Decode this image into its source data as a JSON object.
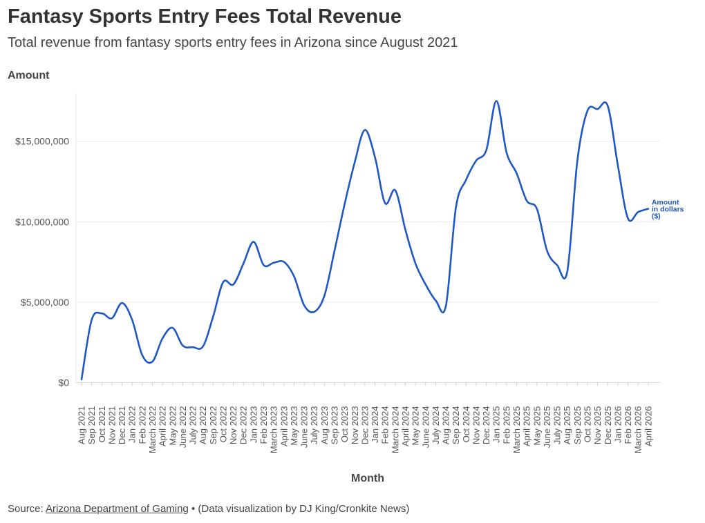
{
  "chart_data": {
    "type": "line",
    "title": "Fantasy Sports Entry Fees Total Revenue",
    "subtitle": "Total revenue from fantasy sports entry fees in Arizona since August 2021",
    "ylabel": "Amount",
    "xlabel": "Month",
    "ylim": [
      0,
      18000000
    ],
    "yticks": [
      0,
      5000000,
      10000000,
      15000000
    ],
    "ytick_labels": [
      "$0",
      "$5,000,000",
      "$10,000,000",
      "$15,000,000"
    ],
    "grid": true,
    "color": "#1f57c3",
    "categories": [
      "Aug 2021",
      "Sep 2021",
      "Oct 2021",
      "Nov 2021",
      "Dec 2021",
      "Jan 2022",
      "Feb 2022",
      "March 2022",
      "April 2022",
      "May 2022",
      "June 2022",
      "July 2022",
      "Aug 2022",
      "Sep 2022",
      "Oct 2022",
      "Nov 2022",
      "Dec 2022",
      "Jan 2023",
      "Feb 2023",
      "March 2023",
      "April 2023",
      "May 2023",
      "June 2023",
      "July 2023",
      "Aug 2023",
      "Sep 2023",
      "Oct 2023",
      "Nov 2023",
      "Dec 2023",
      "Jan 2024",
      "Feb 2024",
      "March 2024",
      "April 2024",
      "May 2024",
      "June 2024",
      "July 2024",
      "Aug 2024",
      "Sep 2024",
      "Oct 2024",
      "Nov 2024",
      "Dec 2024",
      "Jan 2025",
      "Feb 2025",
      "March 2025",
      "April 2025",
      "May 2025",
      "June 2025",
      "July 2025",
      "Aug 2025",
      "Sep 2025",
      "Oct 2025",
      "Nov 2025",
      "Dec 2025",
      "Jan 2026",
      "Feb 2026",
      "March 2026",
      "April 2026"
    ],
    "series": [
      {
        "name": "Amount in dollars ($)",
        "values": [
          200000,
          3900000,
          4300000,
          4000000,
          4950000,
          3900000,
          1700000,
          1300000,
          2750000,
          3400000,
          2300000,
          2200000,
          2250000,
          4100000,
          6250000,
          6100000,
          7400000,
          8750000,
          7300000,
          7450000,
          7500000,
          6600000,
          4800000,
          4400000,
          5400000,
          8200000,
          11100000,
          13700000,
          15700000,
          14000000,
          11150000,
          11950000,
          9500000,
          7400000,
          6100000,
          5100000,
          4750000,
          10900000,
          12600000,
          13800000,
          14450000,
          17500000,
          14300000,
          13000000,
          11300000,
          10800000,
          8200000,
          7300000,
          6900000,
          13800000,
          16900000,
          17000000,
          17200000,
          13500000,
          10200000,
          10600000,
          10800000
        ]
      }
    ],
    "end_label_lines": [
      "Amount",
      "in dollars",
      "($)"
    ]
  },
  "source": {
    "prefix": "Source:",
    "link_text": "Arizona Department of Gaming",
    "suffix": "• (Data visualization by DJ King/Cronkite News)"
  }
}
